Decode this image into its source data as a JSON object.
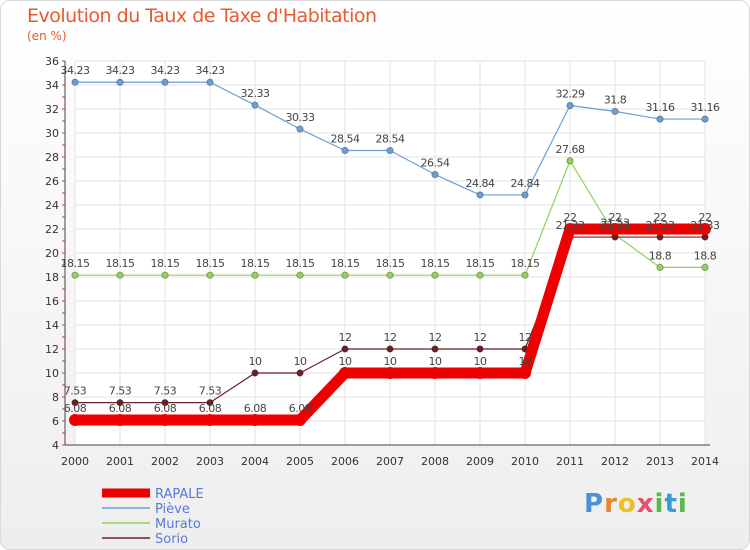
{
  "title": "Evolution du Taux de Taxe d'Habitation",
  "subtitle": "(en %)",
  "logo": "Proxiti",
  "chart_data": {
    "type": "line",
    "title": "Evolution du Taux de Taxe d'Habitation",
    "ylabel": "(en %)",
    "xlabel": "",
    "x": [
      "2000",
      "2001",
      "2002",
      "2003",
      "2004",
      "2005",
      "2006",
      "2007",
      "2008",
      "2009",
      "2010",
      "2011",
      "2012",
      "2013",
      "2014"
    ],
    "ylim": [
      4,
      36
    ],
    "yticks": [
      4,
      6,
      8,
      10,
      12,
      14,
      16,
      18,
      20,
      22,
      24,
      26,
      28,
      30,
      32,
      34,
      36
    ],
    "grid": true,
    "legend_position": "bottom-left",
    "series": [
      {
        "name": "RAPALE",
        "color": "#ee0000",
        "values": [
          6.08,
          6.08,
          6.08,
          6.08,
          6.08,
          6.08,
          10,
          10,
          10,
          10,
          10,
          22,
          22,
          22,
          22
        ],
        "labels": [
          "6.08",
          "6.08",
          "6.08",
          "6.08",
          "6.08",
          "6.08",
          "10",
          "10",
          "10",
          "10",
          "10",
          "22",
          "22",
          "22",
          "22"
        ]
      },
      {
        "name": "Piève",
        "color": "#6a9fd4",
        "values": [
          34.23,
          34.23,
          34.23,
          34.23,
          32.33,
          30.33,
          28.54,
          28.54,
          26.54,
          24.84,
          24.84,
          32.29,
          31.8,
          31.16,
          31.16
        ],
        "labels": [
          "34.23",
          "34.23",
          "34.23",
          "34.23",
          "32.33",
          "30.33",
          "28.54",
          "28.54",
          "26.54",
          "24.84",
          "24.84",
          "32.29",
          "31.8",
          "31.16",
          "31.16"
        ]
      },
      {
        "name": "Murato",
        "color": "#8fd45a",
        "values": [
          18.15,
          18.15,
          18.15,
          18.15,
          18.15,
          18.15,
          18.15,
          18.15,
          18.15,
          18.15,
          18.15,
          27.68,
          21.53,
          18.8,
          18.8
        ],
        "labels": [
          "18.15",
          "18.15",
          "18.15",
          "18.15",
          "18.15",
          "18.15",
          "18.15",
          "18.15",
          "18.15",
          "18.15",
          "18.15",
          "27.68",
          "21.53",
          "18.8",
          "18.8"
        ]
      },
      {
        "name": "Sorio",
        "color": "#6b1f28",
        "values": [
          7.53,
          7.53,
          7.53,
          7.53,
          10,
          10,
          12,
          12,
          12,
          12,
          12,
          21.33,
          21.33,
          21.33,
          21.33
        ],
        "labels": [
          "7.53",
          "7.53",
          "7.53",
          "7.53",
          "10",
          "10",
          "12",
          "12",
          "12",
          "12",
          "12",
          "21.33",
          "21.33",
          "21.33",
          "21.33"
        ]
      }
    ]
  }
}
